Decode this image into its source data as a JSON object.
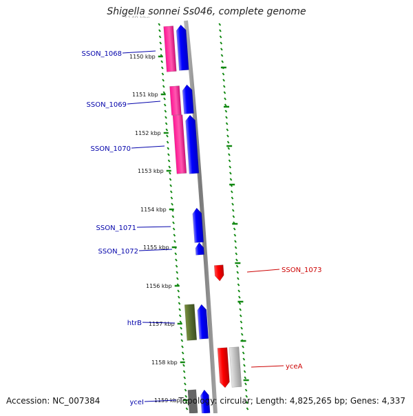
{
  "title": "Shigella sonnei Ss046, complete genome",
  "footer": {
    "accession": "Accession: NC_007384",
    "summary": "Topology: circular; Length: 4,825,265 bp; Genes: 4,337"
  },
  "colors": {
    "forward_gene": "#0000ff",
    "reverse_gene": "#ff0000",
    "pink_gene": "#ff1493",
    "olive_gene": "#556b2f",
    "gray_gene": "#c0c0c0",
    "tick_green": "#118811",
    "backbone": "#8a8a8a",
    "label_blue": "#0000aa",
    "label_red": "#cc0000"
  },
  "kbp_labels": [
    "1150 kbp",
    "1151 kbp",
    "1152 kbp",
    "1153 kbp",
    "1154 kbp",
    "1155 kbp",
    "1156 kbp",
    "1157 kbp",
    "1158 kbp",
    "1159 kbp"
  ],
  "genes": [
    {
      "label": "SSON_1068"
    },
    {
      "label": "SSON_1069"
    },
    {
      "label": "SSON_1070"
    },
    {
      "label": "SSON_1071"
    },
    {
      "label": "SSON_1072"
    },
    {
      "label": "SSON_1073"
    },
    {
      "label": "htrB"
    },
    {
      "label": "yceA"
    },
    {
      "label": "yceI"
    }
  ]
}
